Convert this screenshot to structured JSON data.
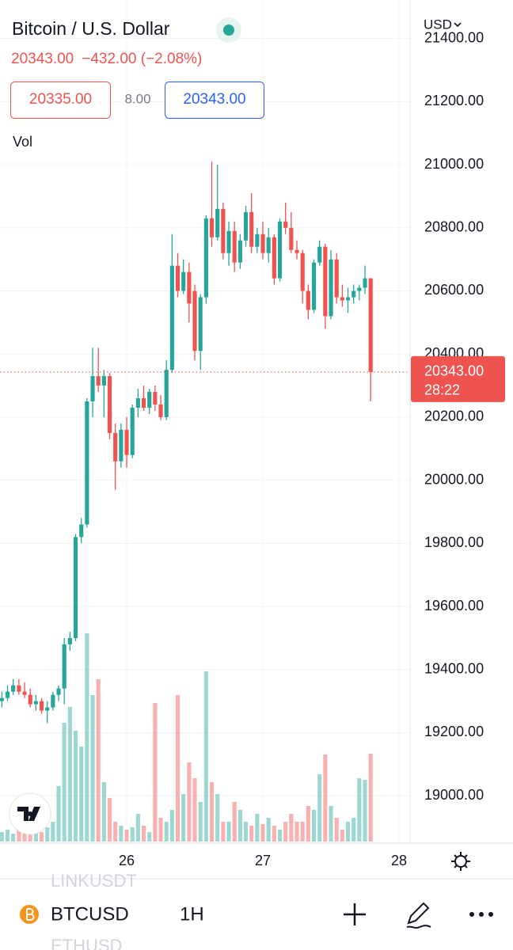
{
  "header": {
    "title": "Bitcoin / U.S. Dollar",
    "price": "20343.00",
    "change": "−432.00 (−2.08%)",
    "bid": "20335.00",
    "spread": "8.00",
    "ask": "20343.00",
    "volume_label": "Vol",
    "currency": "USD"
  },
  "chart_data": {
    "type": "candlestick",
    "up_color": "#26a69a",
    "down_color": "#ef5350",
    "grid": true,
    "x": [
      2,
      3,
      4,
      5,
      6,
      7,
      8,
      9,
      10,
      11,
      12,
      13,
      14,
      15,
      16,
      17,
      18,
      19,
      20,
      21,
      22,
      23,
      24,
      25,
      26,
      27,
      28,
      29,
      30,
      31,
      32,
      33,
      34,
      35,
      36,
      37,
      38,
      39,
      40,
      41,
      42,
      43,
      44,
      45,
      46,
      47,
      48,
      49,
      50,
      51,
      52,
      53,
      54,
      55,
      56,
      57,
      58,
      59,
      60,
      61,
      62,
      63,
      64,
      65,
      66,
      67
    ],
    "open": [
      19300,
      19310,
      19330,
      19350,
      19330,
      19320,
      19290,
      19300,
      19270,
      19280,
      19320,
      19340,
      19480,
      19500,
      19820,
      19860,
      20250,
      20330,
      20300,
      20330,
      20150,
      20060,
      20160,
      20080,
      20230,
      20260,
      20230,
      20280,
      20240,
      20200,
      20350,
      20680,
      20600,
      20660,
      20600,
      20410,
      20580,
      20830,
      20770,
      20860,
      20720,
      20790,
      20690,
      20760,
      20850,
      20740,
      20780,
      20720,
      20770,
      20640,
      20820,
      20800,
      20730,
      20720,
      20600,
      20540,
      20690,
      20740,
      20520,
      20700,
      20580,
      20570,
      20580,
      20600,
      20610,
      20640
    ],
    "high": [
      19330,
      19350,
      19370,
      19370,
      19360,
      19340,
      19320,
      19310,
      19300,
      19330,
      19350,
      19500,
      19520,
      19830,
      19880,
      20260,
      20420,
      20420,
      20350,
      20340,
      20180,
      20180,
      20200,
      20240,
      20290,
      20300,
      20290,
      20300,
      20270,
      20380,
      20780,
      20720,
      20700,
      20690,
      20620,
      20590,
      20840,
      21010,
      21000,
      20880,
      20820,
      20820,
      20780,
      20870,
      20910,
      20800,
      20820,
      20800,
      20780,
      20830,
      20880,
      20850,
      20760,
      20730,
      20620,
      20700,
      20760,
      20750,
      20730,
      20720,
      20620,
      20610,
      20620,
      20620,
      20680,
      20640
    ],
    "low": [
      19280,
      19300,
      19320,
      19320,
      19310,
      19280,
      19270,
      19260,
      19230,
      19270,
      19300,
      19290,
      19460,
      19490,
      19800,
      19850,
      20200,
      20280,
      20200,
      20130,
      19970,
      20040,
      20040,
      20070,
      20200,
      20220,
      20210,
      20220,
      20190,
      20190,
      20340,
      20580,
      20590,
      20500,
      20380,
      20350,
      20560,
      20740,
      20760,
      20700,
      20680,
      20660,
      20670,
      20740,
      20720,
      20720,
      20700,
      20690,
      20620,
      20630,
      20780,
      20720,
      20700,
      20560,
      20510,
      20530,
      20680,
      20480,
      20510,
      20560,
      20550,
      20530,
      20560,
      20570,
      20590,
      20250
    ],
    "close": [
      19310,
      19330,
      19350,
      19330,
      19320,
      19290,
      19300,
      19270,
      19280,
      19320,
      19340,
      19480,
      19500,
      19820,
      19860,
      20250,
      20330,
      20300,
      20330,
      20150,
      20060,
      20160,
      20080,
      20230,
      20260,
      20230,
      20280,
      20240,
      20200,
      20350,
      20680,
      20600,
      20660,
      20560,
      20410,
      20580,
      20830,
      20770,
      20860,
      20720,
      20790,
      20690,
      20760,
      20850,
      20740,
      20780,
      20720,
      20770,
      20640,
      20820,
      20800,
      20730,
      20720,
      20600,
      20540,
      20690,
      20740,
      20520,
      20700,
      20580,
      20570,
      20580,
      20600,
      20610,
      20640,
      20343
    ],
    "volume": [
      12,
      15,
      10,
      20,
      30,
      18,
      15,
      12,
      18,
      25,
      70,
      150,
      170,
      140,
      120,
      263,
      185,
      205,
      75,
      55,
      25,
      20,
      15,
      18,
      35,
      20,
      12,
      175,
      30,
      25,
      40,
      185,
      60,
      100,
      80,
      50,
      215,
      75,
      60,
      25,
      25,
      50,
      40,
      25,
      20,
      35,
      22,
      30,
      20,
      15,
      25,
      35,
      25,
      25,
      45,
      40,
      85,
      110,
      45,
      30,
      15,
      25,
      30,
      80,
      78,
      111
    ],
    "volume_lim": [
      0,
      1065
    ],
    "xlim": [
      1.67,
      73.95
    ],
    "xticks": [
      {
        "value": 24,
        "label": "26"
      },
      {
        "value": 48,
        "label": "27"
      },
      {
        "value": 72,
        "label": "28"
      }
    ],
    "ylim": [
      18850,
      21522
    ],
    "yticks": [
      {
        "value": 19000,
        "label": "19000.00"
      },
      {
        "value": 19200,
        "label": "19200.00"
      },
      {
        "value": 19400,
        "label": "19400.00"
      },
      {
        "value": 19600,
        "label": "19600.00"
      },
      {
        "value": 19800,
        "label": "19800.00"
      },
      {
        "value": 20000,
        "label": "20000.00"
      },
      {
        "value": 20200,
        "label": "20200.00"
      },
      {
        "value": 20400,
        "label": "20400.00"
      },
      {
        "value": 20600,
        "label": "20600.00"
      },
      {
        "value": 20800,
        "label": "20800.00"
      },
      {
        "value": 21000,
        "label": "21000.00"
      },
      {
        "value": 21200,
        "label": "21200.00"
      },
      {
        "value": 21400,
        "label": "21400.00"
      }
    ],
    "price_line": {
      "value": 20343,
      "label": "20343.00",
      "countdown": "28:22"
    }
  },
  "footer": {
    "symbol": "BTCUSD",
    "interval": "1H",
    "above": "LINKUSDT",
    "below": "ETHUSD"
  }
}
